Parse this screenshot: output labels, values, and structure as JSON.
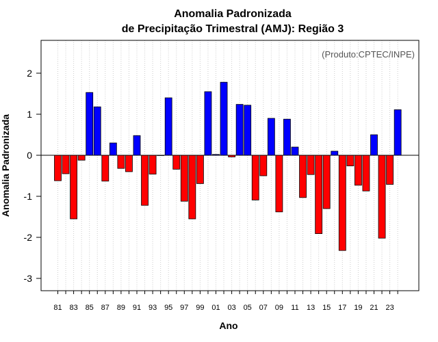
{
  "chart_data": {
    "type": "bar",
    "title_line1": "Anomalia Padronizada",
    "title_line2": "de Precipitação Trimestral (AMJ): Região 3",
    "source": "(Produto:CPTEC/INPE)",
    "xlabel": "Ano",
    "ylabel": "Anomalia Padronizada",
    "ylim": [
      -3.3,
      2.8
    ],
    "yticks": [
      -3,
      -2,
      -1,
      0,
      1,
      2
    ],
    "grid": "vertical dotted",
    "positive_color": "#0000ff",
    "negative_color": "#ff0000",
    "categories": [
      "81",
      "82",
      "83",
      "84",
      "85",
      "86",
      "87",
      "88",
      "89",
      "90",
      "91",
      "92",
      "93",
      "94",
      "95",
      "96",
      "97",
      "98",
      "99",
      "00",
      "01",
      "02",
      "03",
      "04",
      "05",
      "06",
      "07",
      "08",
      "09",
      "10",
      "11",
      "12",
      "13",
      "14",
      "15",
      "16",
      "17",
      "18",
      "19",
      "20",
      "21",
      "22",
      "23",
      "24"
    ],
    "tick_labels": [
      "81",
      "83",
      "85",
      "87",
      "89",
      "91",
      "93",
      "95",
      "97",
      "99",
      "01",
      "03",
      "05",
      "07",
      "09",
      "11",
      "13",
      "15",
      "17",
      "19",
      "21",
      "23"
    ],
    "values": [
      -0.62,
      -0.45,
      -1.55,
      -0.12,
      1.53,
      1.18,
      -0.63,
      0.3,
      -0.32,
      -0.4,
      0.48,
      -1.22,
      -0.46,
      0.0,
      1.4,
      -0.34,
      -1.12,
      -1.55,
      -0.69,
      1.55,
      0.02,
      1.78,
      -0.04,
      1.24,
      1.22,
      -1.09,
      -0.5,
      0.9,
      -1.38,
      0.88,
      0.2,
      -1.03,
      -0.47,
      -1.91,
      -1.3,
      0.1,
      -2.32,
      -0.26,
      -0.73,
      -0.87,
      0.5,
      -2.02,
      -0.71,
      1.11
    ]
  }
}
